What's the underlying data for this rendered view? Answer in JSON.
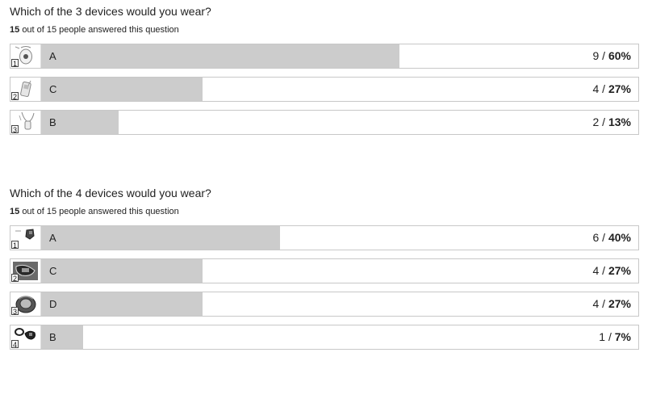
{
  "questions": [
    {
      "title": "Which of the 3 devices would you wear?",
      "answered_count": "15",
      "answered_rest": "out of 15 people answered this question",
      "options": [
        {
          "rank": "1",
          "label": "A",
          "count": "9",
          "percent": "60%",
          "fraction": 0.6,
          "icon": "white-round-pendant-device-icon"
        },
        {
          "rank": "2",
          "label": "C",
          "count": "4",
          "percent": "27%",
          "fraction": 0.27,
          "icon": "clip-on-device-icon"
        },
        {
          "rank": "3",
          "label": "B",
          "count": "2",
          "percent": "13%",
          "fraction": 0.13,
          "icon": "necklace-pendant-device-icon"
        }
      ]
    },
    {
      "title": "Which of the 4 devices would you wear?",
      "answered_count": "15",
      "answered_rest": "out of 15 people answered this question",
      "options": [
        {
          "rank": "1",
          "label": "A",
          "count": "6",
          "percent": "40%",
          "fraction": 0.4,
          "icon": "wrist-clip-device-icon"
        },
        {
          "rank": "2",
          "label": "C",
          "count": "4",
          "percent": "27%",
          "fraction": 0.27,
          "icon": "dark-band-device-icon"
        },
        {
          "rank": "3",
          "label": "D",
          "count": "4",
          "percent": "27%",
          "fraction": 0.27,
          "icon": "wrist-watch-device-icon"
        },
        {
          "rank": "4",
          "label": "B",
          "count": "1",
          "percent": "7%",
          "fraction": 0.07,
          "icon": "ring-band-device-icon"
        }
      ]
    }
  ],
  "chart_data": [
    {
      "type": "bar",
      "title": "Which of the 3 devices would you wear?",
      "categories": [
        "A",
        "C",
        "B"
      ],
      "values": [
        9,
        4,
        2
      ],
      "percentages": [
        "60%",
        "27%",
        "13%"
      ]
    },
    {
      "type": "bar",
      "title": "Which of the 4 devices would you wear?",
      "categories": [
        "A",
        "C",
        "D",
        "B"
      ],
      "values": [
        6,
        4,
        4,
        1
      ],
      "percentages": [
        "40%",
        "27%",
        "27%",
        "7%"
      ]
    }
  ],
  "colors": {
    "bar_fill": "#cccccc",
    "row_border": "#c8c8c8",
    "text": "#222222"
  }
}
